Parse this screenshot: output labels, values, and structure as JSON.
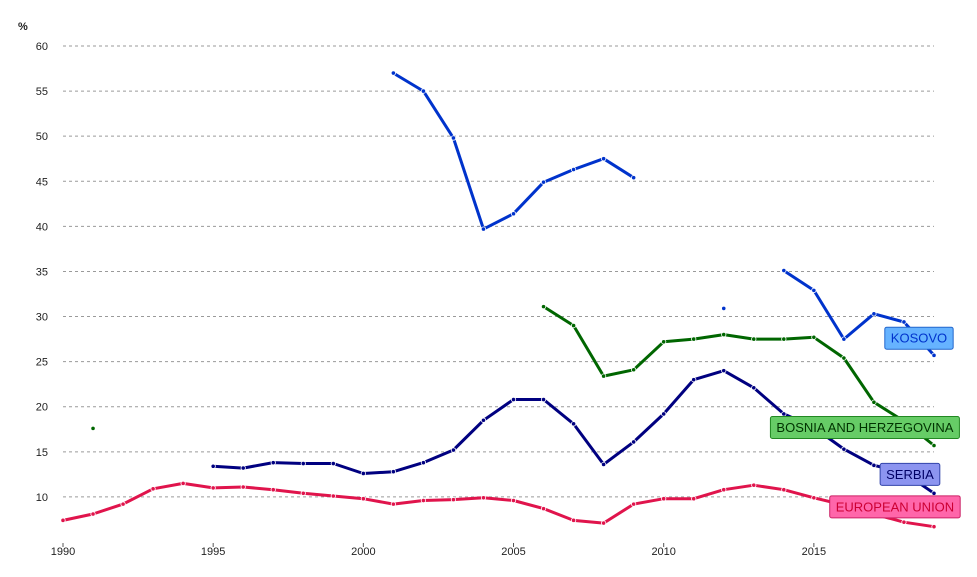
{
  "chart_data": {
    "type": "line",
    "unit_label": "%",
    "xlim": [
      1990,
      2019
    ],
    "ylim": [
      5,
      60
    ],
    "x_ticks": [
      1990,
      1995,
      2000,
      2005,
      2010,
      2015
    ],
    "y_ticks": [
      10,
      15,
      20,
      25,
      30,
      35,
      40,
      45,
      50,
      55,
      60
    ],
    "grid": true,
    "series": [
      {
        "name": "KOSOVO",
        "color": "#0033cc",
        "label_fill": "#66b3ff",
        "label_stroke": "#2266cc",
        "label_text_color": "#0033cc",
        "label_at": [
          2018.5,
          27.6
        ],
        "points": [
          [
            2001,
            57.0
          ],
          [
            2002,
            55.0
          ],
          [
            2003,
            49.8
          ],
          [
            2004,
            39.7
          ],
          [
            2005,
            41.4
          ],
          [
            2006,
            44.9
          ],
          [
            2007,
            46.3
          ],
          [
            2008,
            47.5
          ],
          [
            2009,
            45.4
          ],
          null,
          [
            2012,
            30.9
          ],
          null,
          [
            2014,
            35.1
          ],
          [
            2015,
            32.9
          ],
          [
            2016,
            27.5
          ],
          [
            2017,
            30.3
          ],
          [
            2018,
            29.4
          ],
          [
            2019,
            25.7
          ]
        ]
      },
      {
        "name": "BOSNIA AND HERZEGOVINA",
        "color": "#006600",
        "label_fill": "#66cc66",
        "label_stroke": "#228822",
        "label_text_color": "#003300",
        "label_at": [
          2016.7,
          17.7
        ],
        "points": [
          [
            1991,
            17.6
          ],
          null,
          [
            2006,
            31.1
          ],
          [
            2007,
            29.0
          ],
          [
            2008,
            23.4
          ],
          [
            2009,
            24.1
          ],
          [
            2010,
            27.2
          ],
          [
            2011,
            27.5
          ],
          [
            2012,
            28.0
          ],
          [
            2013,
            27.5
          ],
          [
            2014,
            27.5
          ],
          [
            2015,
            27.7
          ],
          [
            2016,
            25.4
          ],
          [
            2017,
            20.5
          ],
          [
            2018,
            18.4
          ],
          [
            2019,
            15.7
          ]
        ]
      },
      {
        "name": "SERBIA",
        "color": "#000080",
        "label_fill": "#8c94f0",
        "label_stroke": "#3344aa",
        "label_text_color": "#000066",
        "label_at": [
          2018.2,
          12.5
        ],
        "points": [
          [
            1995,
            13.4
          ],
          [
            1996,
            13.2
          ],
          [
            1997,
            13.8
          ],
          [
            1998,
            13.7
          ],
          [
            1999,
            13.7
          ],
          [
            2000,
            12.6
          ],
          [
            2001,
            12.8
          ],
          [
            2002,
            13.8
          ],
          [
            2003,
            15.2
          ],
          [
            2004,
            18.5
          ],
          [
            2005,
            20.8
          ],
          [
            2006,
            20.8
          ],
          [
            2007,
            18.1
          ],
          [
            2008,
            13.6
          ],
          [
            2009,
            16.1
          ],
          [
            2010,
            19.2
          ],
          [
            2011,
            23.0
          ],
          [
            2012,
            24.0
          ],
          [
            2013,
            22.1
          ],
          [
            2014,
            19.2
          ],
          [
            2015,
            17.7
          ],
          [
            2016,
            15.3
          ],
          [
            2017,
            13.5
          ],
          [
            2018,
            12.7
          ],
          [
            2019,
            10.4
          ]
        ]
      },
      {
        "name": "EUROPEAN UNION",
        "color": "#e0144c",
        "label_fill": "#ff66aa",
        "label_stroke": "#cc2266",
        "label_text_color": "#cc0033",
        "label_at": [
          2017.7,
          8.9
        ],
        "points": [
          [
            1990,
            7.4
          ],
          [
            1991,
            8.1
          ],
          [
            1992,
            9.2
          ],
          [
            1993,
            10.9
          ],
          [
            1994,
            11.5
          ],
          [
            1995,
            11.0
          ],
          [
            1996,
            11.1
          ],
          [
            1997,
            10.8
          ],
          [
            1998,
            10.4
          ],
          [
            1999,
            10.1
          ],
          [
            2000,
            9.8
          ],
          [
            2001,
            9.2
          ],
          [
            2002,
            9.6
          ],
          [
            2003,
            9.7
          ],
          [
            2004,
            9.9
          ],
          [
            2005,
            9.6
          ],
          [
            2006,
            8.7
          ],
          [
            2007,
            7.4
          ],
          [
            2008,
            7.1
          ],
          [
            2009,
            9.2
          ],
          [
            2010,
            9.8
          ],
          [
            2011,
            9.8
          ],
          [
            2012,
            10.8
          ],
          [
            2013,
            11.3
          ],
          [
            2014,
            10.8
          ],
          [
            2015,
            9.9
          ],
          [
            2016,
            9.1
          ],
          [
            2017,
            8.1
          ],
          [
            2018,
            7.2
          ],
          [
            2019,
            6.7
          ]
        ]
      }
    ]
  }
}
